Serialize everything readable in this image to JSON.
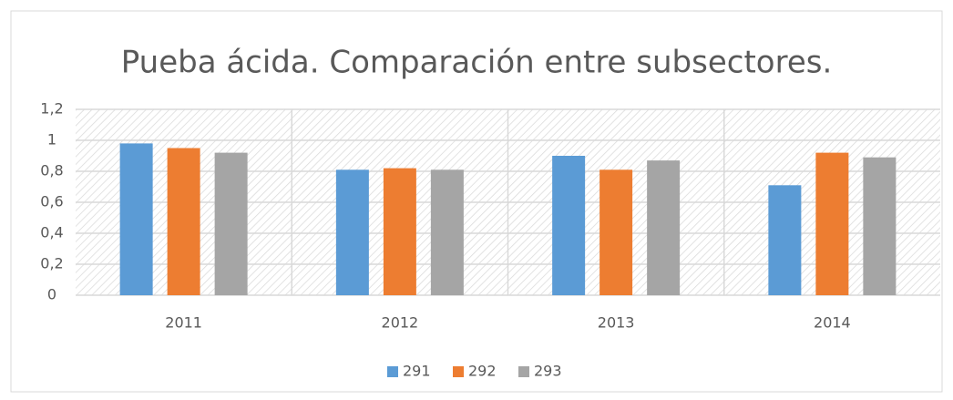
{
  "chart_data": {
    "type": "bar",
    "title": "Pueba ácida. Comparación entre subsectores.",
    "categories": [
      "2011",
      "2012",
      "2013",
      "2014"
    ],
    "series": [
      {
        "name": "291",
        "color": "#5b9bd5",
        "values": [
          0.98,
          0.81,
          0.9,
          0.71
        ]
      },
      {
        "name": "292",
        "color": "#ed7d31",
        "values": [
          0.95,
          0.82,
          0.81,
          0.92
        ]
      },
      {
        "name": "293",
        "color": "#a5a5a5",
        "values": [
          0.92,
          0.81,
          0.87,
          0.89
        ]
      }
    ],
    "ylim": [
      0,
      1.2
    ],
    "yticks": [
      0,
      {
        "value": 0.2,
        "label": "0,2"
      },
      {
        "value": 0.4,
        "label": "0,4"
      },
      {
        "value": 0.6,
        "label": "0,6"
      },
      {
        "value": 0.8,
        "label": "0,8"
      },
      1,
      {
        "value": 1.2,
        "label": "1,2"
      }
    ],
    "grid": true,
    "legend": "bottom"
  }
}
